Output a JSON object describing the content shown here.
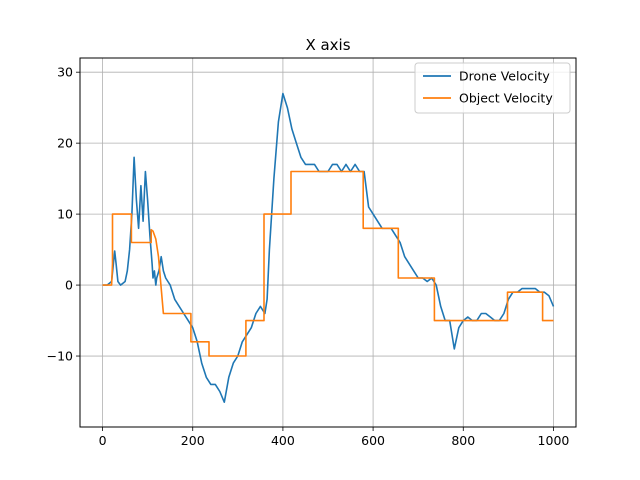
{
  "chart_data": {
    "type": "line",
    "title": "X axis",
    "xlabel": "",
    "ylabel": "",
    "xlim": [
      -50,
      1050
    ],
    "ylim": [
      -20,
      32
    ],
    "xticks": [
      0,
      200,
      400,
      600,
      800,
      1000
    ],
    "yticks": [
      -10,
      0,
      10,
      20,
      30
    ],
    "grid": true,
    "legend_position": "top-right",
    "series": [
      {
        "name": "Drone Velocity",
        "color": "#1f77b4",
        "x": [
          0,
          10,
          20,
          24,
          27,
          30,
          34,
          40,
          50,
          55,
          60,
          65,
          70,
          75,
          80,
          85,
          90,
          95,
          100,
          105,
          110,
          112,
          115,
          118,
          120,
          125,
          130,
          135,
          140,
          145,
          150,
          160,
          170,
          180,
          190,
          200,
          205,
          210,
          220,
          230,
          240,
          250,
          260,
          270,
          280,
          290,
          300,
          310,
          320,
          330,
          340,
          350,
          360,
          365,
          370,
          380,
          390,
          400,
          410,
          420,
          430,
          440,
          450,
          460,
          470,
          480,
          490,
          500,
          510,
          520,
          530,
          540,
          550,
          560,
          570,
          580,
          590,
          600,
          610,
          620,
          630,
          640,
          650,
          660,
          670,
          680,
          690,
          700,
          710,
          720,
          730,
          740,
          750,
          760,
          770,
          780,
          790,
          800,
          810,
          820,
          830,
          840,
          850,
          860,
          870,
          880,
          890,
          900,
          910,
          920,
          930,
          940,
          950,
          960,
          970,
          980,
          990,
          1000
        ],
        "y": [
          0,
          0,
          0.5,
          3,
          4.8,
          3,
          0.5,
          0,
          0.5,
          2,
          5,
          10,
          18,
          12,
          8,
          14,
          9,
          16,
          12,
          7,
          3,
          1,
          2,
          0,
          1,
          2,
          4,
          2,
          1,
          0.5,
          0,
          -2,
          -3,
          -4,
          -5,
          -6,
          -7,
          -8,
          -11,
          -13,
          -14,
          -14,
          -15,
          -16.5,
          -13,
          -11,
          -10,
          -8,
          -7,
          -6,
          -4,
          -3,
          -4,
          -2,
          5,
          15,
          23,
          27,
          25,
          22,
          20,
          18,
          17,
          17,
          17,
          16,
          16,
          16,
          17,
          17,
          16,
          17,
          16,
          17,
          16,
          16,
          11,
          10,
          9,
          8,
          8,
          8,
          7,
          6,
          4,
          3,
          2,
          1,
          1,
          0.5,
          1,
          0,
          -3,
          -5,
          -5,
          -9,
          -6,
          -5,
          -4.5,
          -5,
          -5,
          -4,
          -4,
          -4.5,
          -5,
          -5,
          -4,
          -2,
          -1,
          -1,
          -0.5,
          -0.5,
          -0.5,
          -0.5,
          -1,
          -1,
          -1.5,
          -3
        ]
      },
      {
        "name": "Object Velocity",
        "color": "#ff7f0e",
        "x": [
          0,
          20,
          22,
          22,
          64,
          64,
          108,
          108,
          112,
          118,
          124,
          128,
          135,
          135,
          196,
          196,
          236,
          236,
          318,
          318,
          358,
          358,
          418,
          418,
          578,
          578,
          656,
          656,
          736,
          736,
          776,
          776,
          898,
          898,
          976,
          976,
          1000
        ],
        "y": [
          0,
          0,
          3,
          10,
          10,
          6,
          6,
          7.8,
          7.6,
          6.5,
          4,
          1,
          -4,
          -4,
          -4,
          -8,
          -8,
          -10,
          -10,
          -5,
          -5,
          10,
          10,
          16,
          16,
          8,
          8,
          1,
          1,
          -5,
          -5,
          -5,
          -5,
          -1,
          -1,
          -5,
          -5
        ]
      }
    ]
  }
}
